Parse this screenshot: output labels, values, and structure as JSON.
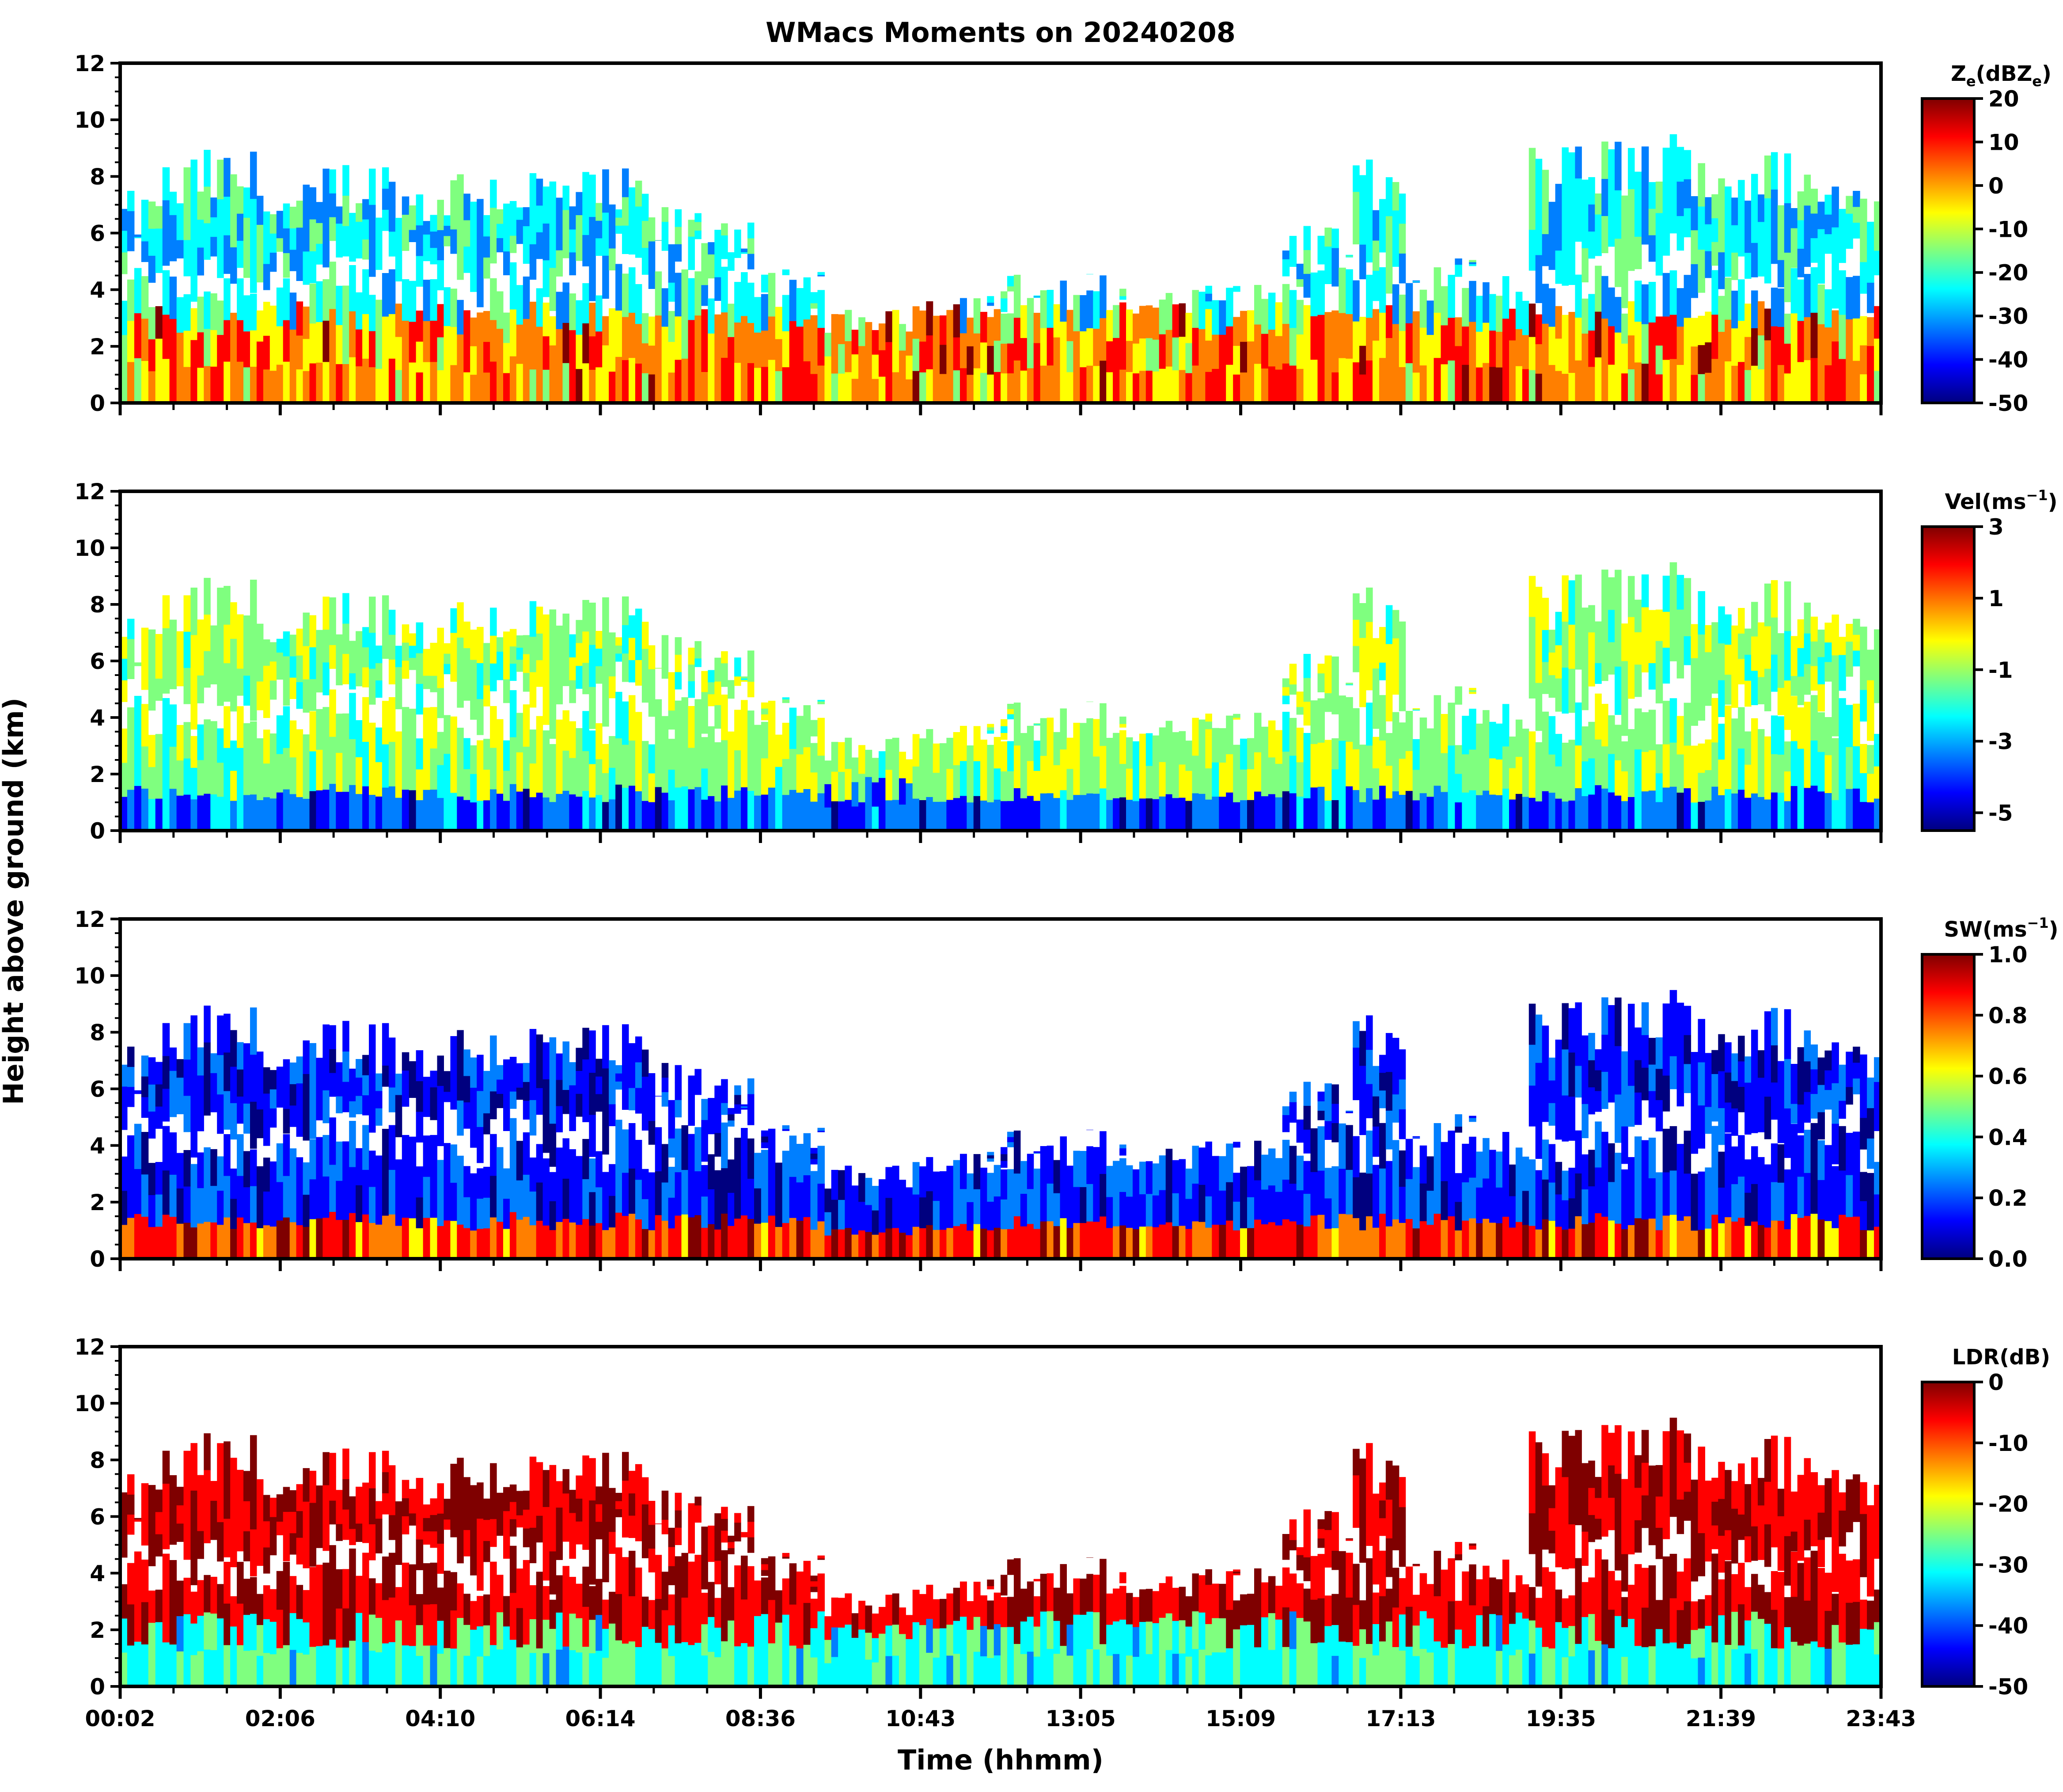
{
  "chart_data": {
    "type": "heatmap",
    "title": "WMacs Moments on 20240208",
    "xlabel": "Time (hhmm)",
    "ylabel": "Height above ground (km)",
    "x_tick_labels": [
      "00:02",
      "02:06",
      "04:10",
      "06:14",
      "08:36",
      "10:43",
      "13:05",
      "15:09",
      "17:13",
      "19:35",
      "21:39",
      "23:43"
    ],
    "y_ticks": [
      0,
      2,
      4,
      6,
      8,
      10,
      12
    ],
    "ylim": [
      0,
      12
    ],
    "colormap": "jet",
    "colormap_stops": [
      "#00007f",
      "#0000ff",
      "#007fff",
      "#00ffff",
      "#7fff7f",
      "#ffff00",
      "#ff7f00",
      "#ff0000",
      "#7f0000"
    ],
    "panels": [
      {
        "id": "ze",
        "cbar_label": "Z",
        "cbar_sub": "e",
        "cbar_unit_pre": "(dBZ",
        "cbar_unit_sub": "e",
        "cbar_unit_post": ")",
        "vmin": -50,
        "vmax": 20,
        "ticks": [
          "20",
          "10",
          "0",
          "-10",
          "-20",
          "-30",
          "-40",
          "-50"
        ]
      },
      {
        "id": "vel",
        "cbar_label": "Vel(ms",
        "cbar_sup": "−1",
        "cbar_post": ")",
        "vmin": -5.5,
        "vmax": 3,
        "ticks": [
          "3",
          "1",
          "-1",
          "-3",
          "-5"
        ]
      },
      {
        "id": "sw",
        "cbar_label": "SW(ms",
        "cbar_sup": "−1",
        "cbar_post": ")",
        "vmin": 0,
        "vmax": 1,
        "ticks": [
          "1.0",
          "0.8",
          "0.6",
          "0.4",
          "0.2",
          "0.0"
        ]
      },
      {
        "id": "ldr",
        "cbar_label": "LDR(dB)",
        "vmin": -50,
        "vmax": 0,
        "ticks": [
          "0",
          "-10",
          "-20",
          "-30",
          "-40",
          "-50"
        ]
      }
    ]
  }
}
